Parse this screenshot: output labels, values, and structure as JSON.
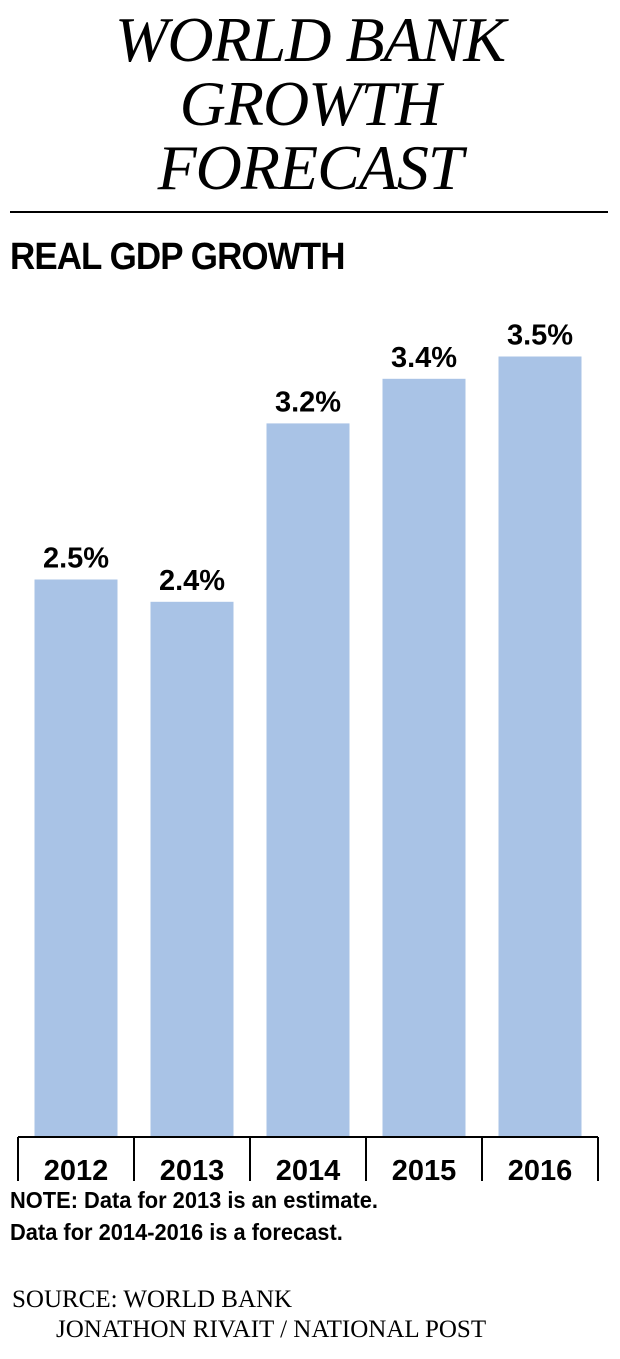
{
  "title_lines": [
    "WORLD BANK",
    "GROWTH",
    "FORECAST"
  ],
  "chart_data": {
    "type": "bar",
    "title": "REAL GDP GROWTH",
    "categories": [
      "2012",
      "2013",
      "2014",
      "2015",
      "2016"
    ],
    "values": [
      2.5,
      2.4,
      3.2,
      3.4,
      3.5
    ],
    "data_labels": [
      "2.5%",
      "2.4%",
      "3.2%",
      "3.4%",
      "3.5%"
    ],
    "ylim": [
      0,
      3.5
    ],
    "grid": false,
    "bar_color": "#a9c3e6"
  },
  "note_lines": [
    "NOTE: Data for 2013 is an estimate.",
    "Data for 2014-2016 is a forecast."
  ],
  "source": "SOURCE: WORLD BANK",
  "credit": "JONATHON RIVAIT / NATIONAL POST"
}
